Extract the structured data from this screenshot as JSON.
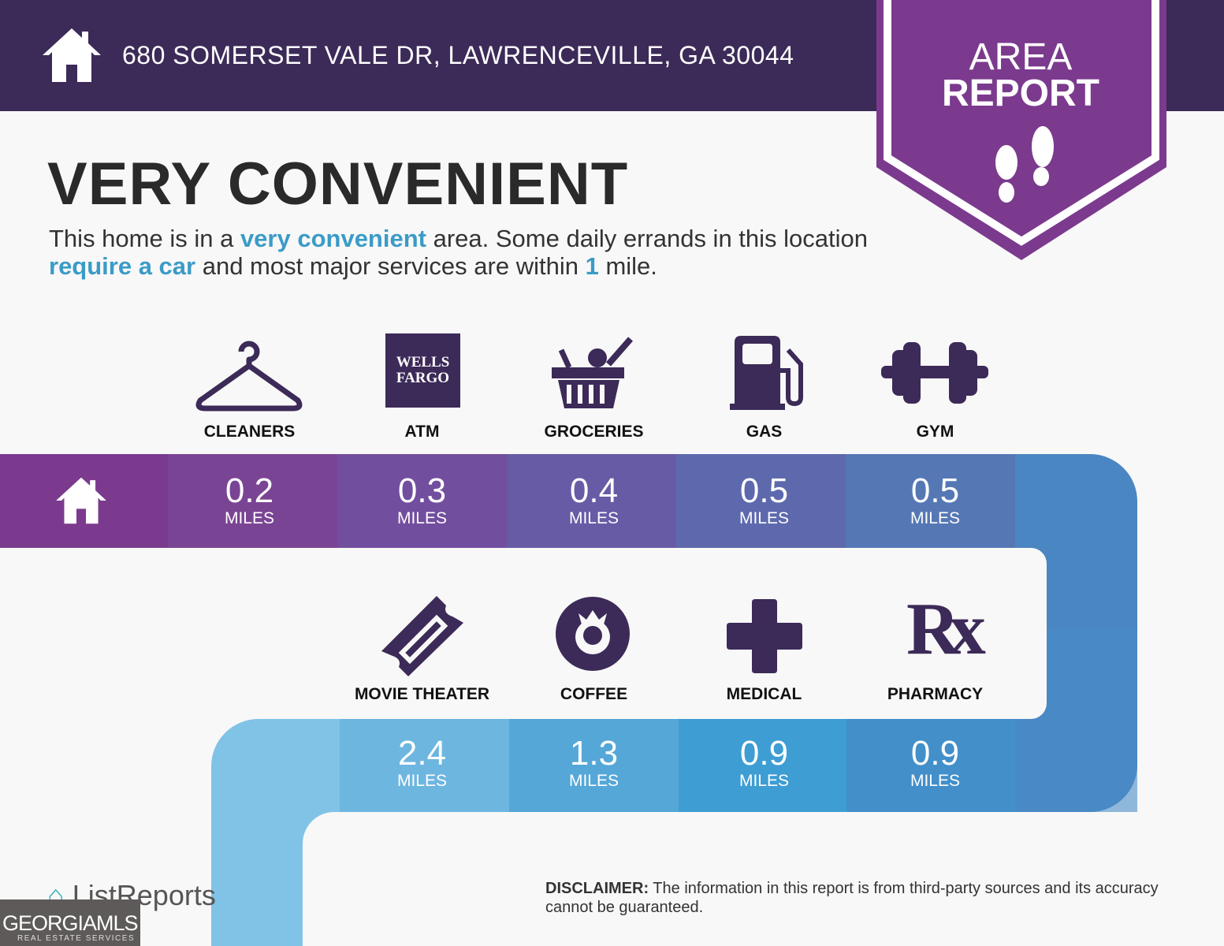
{
  "header": {
    "address": "680 SOMERSET VALE DR, LAWRENCEVILLE, GA 30044",
    "badge_title_1": "AREA",
    "badge_title_2": "REPORT",
    "badge_icon": "footprints-icon"
  },
  "headline": "VERY CONVENIENT",
  "description": {
    "p1": "This home is in a ",
    "h1": "very convenient",
    "p2": " area. Some daily errands in this location ",
    "h2": "require a car",
    "p3": " and most major services are within ",
    "h3": "1",
    "p4": " mile."
  },
  "row1": [
    {
      "label": "CLEANERS",
      "value": "0.2",
      "unit": "MILES",
      "icon": "hanger-icon"
    },
    {
      "label": "ATM",
      "value": "0.3",
      "unit": "MILES",
      "icon": "wells-fargo-logo",
      "logo_text_1": "WELLS",
      "logo_text_2": "FARGO"
    },
    {
      "label": "GROCERIES",
      "value": "0.4",
      "unit": "MILES",
      "icon": "grocery-basket-icon"
    },
    {
      "label": "GAS",
      "value": "0.5",
      "unit": "MILES",
      "icon": "gas-pump-icon"
    },
    {
      "label": "GYM",
      "value": "0.5",
      "unit": "MILES",
      "icon": "dumbbell-icon"
    }
  ],
  "row2": [
    {
      "label": "MOVIE THEATER",
      "value": "2.4",
      "unit": "MILES",
      "icon": "ticket-icon"
    },
    {
      "label": "COFFEE",
      "value": "1.3",
      "unit": "MILES",
      "icon": "starbucks-logo"
    },
    {
      "label": "MEDICAL",
      "value": "0.9",
      "unit": "MILES",
      "icon": "medical-cross-icon"
    },
    {
      "label": "PHARMACY",
      "value": "0.9",
      "unit": "MILES",
      "icon": "rx-icon",
      "rx_text": "Rx"
    }
  ],
  "footer": {
    "brand": "ListReports",
    "disclaimer_label": "DISCLAIMER:",
    "disclaimer": " The information in this report is from third-party sources and its accuracy cannot be guaranteed.",
    "mls_logo": "GEORGIAMLS",
    "mls_sub": "REAL ESTATE SERVICES"
  },
  "colors": {
    "header": "#3c2a58",
    "badge": "#7b3a8e",
    "accent": "#3b9bc7",
    "icon": "#3c2a58"
  }
}
